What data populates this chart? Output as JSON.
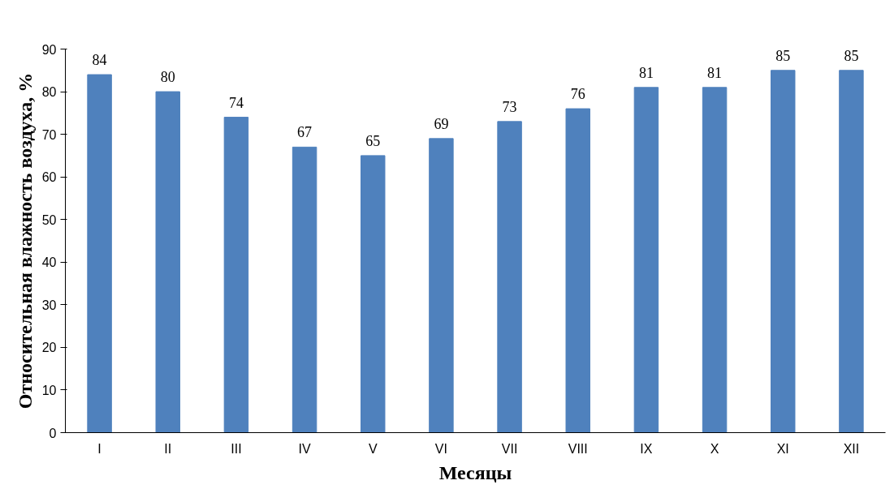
{
  "chart_data": {
    "type": "bar",
    "xlabel": "Месяцы",
    "ylabel": "Относительная влажность воздуха, %",
    "categories": [
      "I",
      "II",
      "III",
      "IV",
      "V",
      "VI",
      "VII",
      "VIII",
      "IX",
      "X",
      "XI",
      "XII"
    ],
    "values": [
      84,
      80,
      74,
      67,
      65,
      69,
      73,
      76,
      81,
      81,
      85,
      85
    ],
    "color": "#4f81bd",
    "ylim": [
      0,
      90
    ],
    "yticks": [
      0,
      10,
      20,
      30,
      40,
      50,
      60,
      70,
      80,
      90
    ],
    "data_labels": true,
    "grid": false
  }
}
